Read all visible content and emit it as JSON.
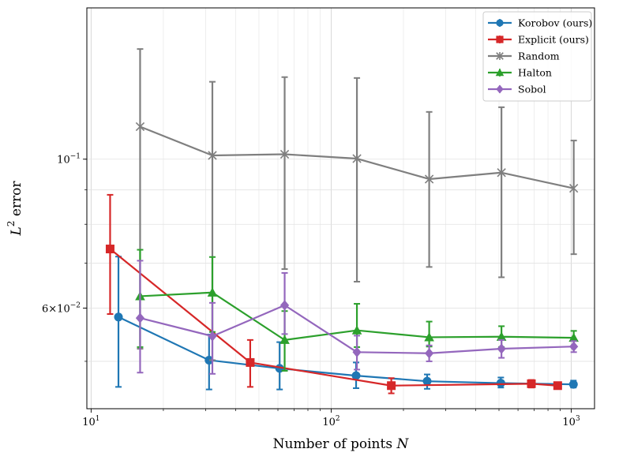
{
  "chart_data": {
    "type": "line",
    "title": "",
    "xlabel_text": "Number of points",
    "xlabel_var": "N",
    "ylabel_base": "L",
    "ylabel_exp": "2",
    "ylabel_text": " error",
    "xscale": "log",
    "yscale": "log",
    "xlim": [
      9.6,
      1250
    ],
    "ylim": [
      0.0425,
      0.168
    ],
    "grid": true,
    "legend_position": "top-right",
    "x_ticks": [
      {
        "value": 10,
        "base": "10",
        "exp": "1"
      },
      {
        "value": 100,
        "base": "10",
        "exp": "2"
      },
      {
        "value": 1000,
        "base": "10",
        "exp": "3"
      }
    ],
    "y_ticks": [
      {
        "value": 0.06,
        "mant": "6",
        "base": "10",
        "exp": "−2"
      },
      {
        "value": 0.1,
        "mant": "",
        "base": "10",
        "exp": "−1"
      }
    ],
    "series": [
      {
        "name": "Korobov (ours)",
        "color": "#1f77b4",
        "marker": "circle",
        "x": [
          13,
          31,
          61,
          127,
          251,
          509,
          1021
        ],
        "y": [
          0.0582,
          0.0502,
          0.0488,
          0.0476,
          0.0467,
          0.0464,
          0.0462
        ],
        "err_low": [
          0.0458,
          0.0454,
          0.0454,
          0.0456,
          0.0455,
          0.0457,
          0.0457
        ],
        "err_high": [
          0.0716,
          0.0548,
          0.0534,
          0.0498,
          0.0478,
          0.0473,
          0.0468
        ]
      },
      {
        "name": "Explicit (ours)",
        "color": "#d62728",
        "marker": "square",
        "x": [
          12,
          46,
          178,
          682,
          878
        ],
        "y": [
          0.0735,
          0.0498,
          0.046,
          0.0463,
          0.046
        ],
        "err_low": [
          0.0588,
          0.0458,
          0.0448,
          0.0457,
          0.0456
        ],
        "err_high": [
          0.0885,
          0.0538,
          0.0472,
          0.0469,
          0.0465
        ]
      },
      {
        "name": "Random",
        "color": "#7f7f7f",
        "marker": "x",
        "x": [
          16,
          32,
          64,
          128,
          256,
          512,
          1024
        ],
        "y": [
          0.1118,
          0.1013,
          0.1017,
          0.1002,
          0.0934,
          0.0955,
          0.0905
        ],
        "err_low": [
          0.0522,
          0.0502,
          0.0686,
          0.0657,
          0.0691,
          0.0667,
          0.0722
        ],
        "err_high": [
          0.1459,
          0.1304,
          0.1325,
          0.1321,
          0.1176,
          0.1195,
          0.1066
        ]
      },
      {
        "name": "Halton",
        "color": "#2ca02c",
        "marker": "triangle",
        "x": [
          16,
          32,
          64,
          128,
          256,
          512,
          1024
        ],
        "y": [
          0.0625,
          0.0633,
          0.0538,
          0.0556,
          0.0543,
          0.0544,
          0.0542
        ],
        "err_low": [
          0.0525,
          0.0553,
          0.0484,
          0.0525,
          0.0526,
          0.0525,
          0.0525
        ],
        "err_high": [
          0.0733,
          0.0715,
          0.0594,
          0.0609,
          0.0573,
          0.0564,
          0.0555
        ]
      },
      {
        "name": "Sobol",
        "color": "#9467bd",
        "marker": "diamond",
        "x": [
          16,
          32,
          64,
          128,
          256,
          512,
          1024
        ],
        "y": [
          0.058,
          0.0545,
          0.0606,
          0.0516,
          0.0514,
          0.0522,
          0.0526
        ],
        "err_low": [
          0.0481,
          0.0479,
          0.0549,
          0.0486,
          0.05,
          0.0506,
          0.0516
        ],
        "err_high": [
          0.0706,
          0.0611,
          0.0677,
          0.0546,
          0.0528,
          0.0538,
          0.0536
        ]
      }
    ]
  }
}
